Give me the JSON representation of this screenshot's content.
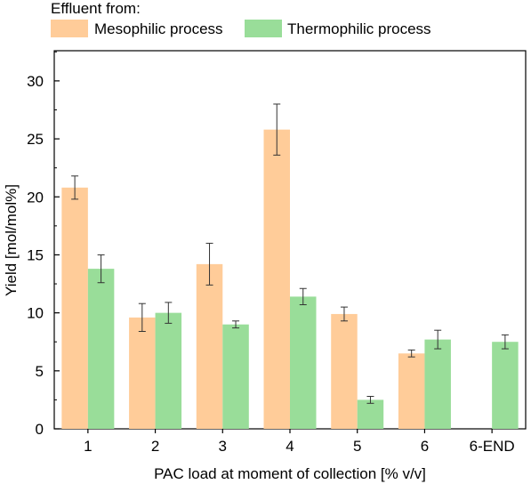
{
  "chart_data": {
    "type": "bar",
    "legend": {
      "title": "Effluent from:",
      "placement": "top"
    },
    "categories": [
      "1",
      "2",
      "3",
      "4",
      "5",
      "6",
      "6-END"
    ],
    "series": [
      {
        "name": "Mesophilic process",
        "color": "#ffcc99",
        "values": [
          20.8,
          9.6,
          14.2,
          25.8,
          9.9,
          6.5,
          null
        ],
        "errors": [
          1.0,
          1.2,
          1.8,
          2.2,
          0.6,
          0.3,
          null
        ]
      },
      {
        "name": "Thermophilic process",
        "color": "#99dd99",
        "values": [
          13.8,
          10.0,
          9.0,
          11.4,
          2.5,
          7.7,
          7.5
        ],
        "errors": [
          1.2,
          0.9,
          0.3,
          0.7,
          0.3,
          0.8,
          0.6
        ]
      }
    ],
    "xlabel": "PAC load at moment of collection [% v/v]",
    "ylabel": "Yield [mol/mol%]",
    "ylim": [
      0,
      32.6
    ],
    "yticks": [
      0,
      5,
      10,
      15,
      20,
      25,
      30
    ],
    "grid": false
  }
}
